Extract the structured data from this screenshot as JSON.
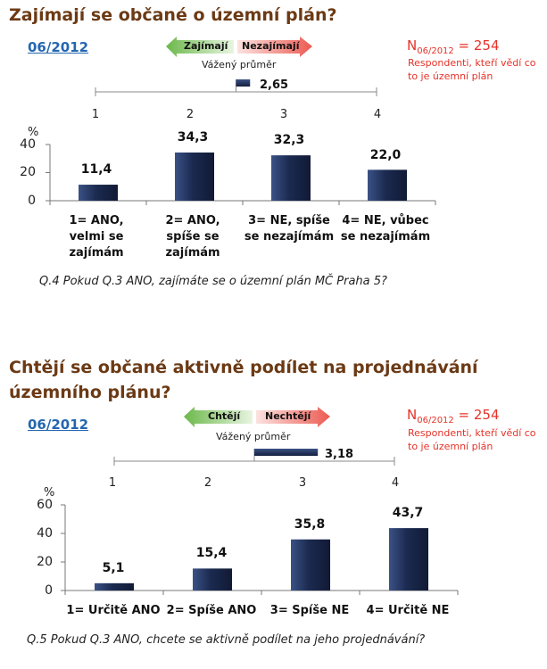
{
  "section1": {
    "title": "Zajímají se občané o územní plán?",
    "date": "06/2012",
    "legend_positive": "Zajímají",
    "legend_negative": "Nezajímají",
    "weighted_avg_label": "Vážený průměr",
    "weighted_avg_value": "2,65",
    "n_prefix": "N",
    "n_sub": "06/2012",
    "n_suffix": " = 254",
    "respondents_line1": "Respondenti, kteří vědí co",
    "respondents_line2": "to je územní plán",
    "scale_ticks": [
      "1",
      "2",
      "3",
      "4"
    ],
    "y_unit": "%",
    "question": "Q.4 Pokud Q.3 ANO, zajímáte se o územní plán MČ Praha 5?"
  },
  "section2": {
    "title_line1": "Chtějí se občané aktivně podílet na projednávání",
    "title_line2": "územního plánu?",
    "date": "06/2012",
    "legend_positive": "Chtějí",
    "legend_negative": "Nechtějí",
    "weighted_avg_label": "Vážený průměr",
    "weighted_avg_value": "3,18",
    "n_prefix": "N",
    "n_sub": "06/2012",
    "n_suffix": " = 254",
    "respondents_line1": "Respondenti, kteří vědí co",
    "respondents_line2": "to je územní plán",
    "scale_ticks": [
      "1",
      "2",
      "3",
      "4"
    ],
    "y_unit": "%",
    "question": "Q.5 Pokud Q.3 ANO, chcete se aktivně podílet na jeho projednávání?"
  },
  "colors": {
    "title": "#6b3a15",
    "date": "#2466b0",
    "respondents": "#e53329",
    "bar": "#1b2a50",
    "positive_arrow": "#7cc35a",
    "negative_arrow": "#ef6a62"
  },
  "chart_data": [
    {
      "type": "bar",
      "categories": [
        "1= ANO,\nvelmi se\nzajímám",
        "2= ANO,\nspíše se\nzajímám",
        "3= NE, spíše\nse nezajímám",
        "4= NE, vůbec\nse nezajímám"
      ],
      "values": [
        11.4,
        34.3,
        32.3,
        22.0
      ],
      "value_labels": [
        "11,4",
        "34,3",
        "32,3",
        "22,0"
      ],
      "ylabel": "%",
      "yticks": [
        "0",
        "20",
        "40"
      ],
      "ylim": [
        0,
        40
      ],
      "weighted_average": 2.65,
      "scale_range": [
        1,
        4
      ]
    },
    {
      "type": "bar",
      "categories": [
        "1= Určitě ANO",
        "2= Spíše ANO",
        "3= Spíše NE",
        "4= Určitě NE"
      ],
      "values": [
        5.1,
        15.4,
        35.8,
        43.7
      ],
      "value_labels": [
        "5,1",
        "15,4",
        "35,8",
        "43,7"
      ],
      "ylabel": "%",
      "yticks": [
        "0",
        "20",
        "40",
        "60"
      ],
      "ylim": [
        0,
        60
      ],
      "weighted_average": 3.18,
      "scale_range": [
        1,
        4
      ]
    }
  ]
}
